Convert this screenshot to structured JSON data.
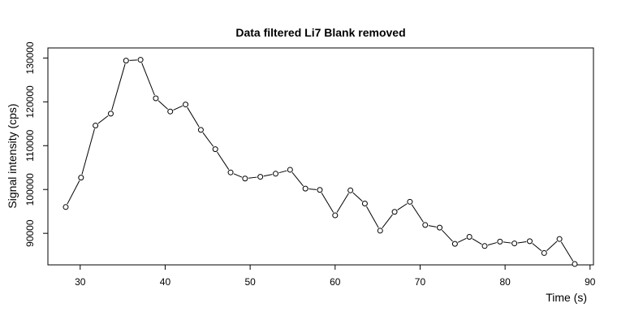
{
  "chart_data": {
    "type": "line",
    "title": "Data filtered Li7 Blank removed",
    "xlabel": "Time (s)",
    "ylabel": "Signal intensity (cps)",
    "xlim": [
      26.2,
      90.4
    ],
    "ylim": [
      82800,
      132300
    ],
    "xticks": [
      30,
      40,
      50,
      60,
      70,
      80,
      90
    ],
    "yticks": [
      90000,
      100000,
      110000,
      120000,
      130000
    ],
    "grid": false,
    "legend": "none",
    "marker": "open-circle",
    "series": [
      {
        "x": [
          28.3,
          30.1,
          31.8,
          33.6,
          35.4,
          37.1,
          38.9,
          40.6,
          42.4,
          44.2,
          45.9,
          47.7,
          49.4,
          51.2,
          53.0,
          54.7,
          56.5,
          58.2,
          60.0,
          61.8,
          63.5,
          65.3,
          67.0,
          68.8,
          70.6,
          72.3,
          74.1,
          75.8,
          77.6,
          79.4,
          81.1,
          82.9,
          84.6,
          86.4,
          88.2
        ],
        "y": [
          96000,
          102700,
          114600,
          117300,
          129400,
          129600,
          120800,
          117800,
          119400,
          113600,
          109200,
          103900,
          102500,
          102900,
          103600,
          104500,
          100200,
          99900,
          94100,
          99800,
          96800,
          90600,
          94900,
          97200,
          91900,
          91300,
          87600,
          89200,
          87100,
          88100,
          87700,
          88200,
          85500,
          88700,
          83000
        ]
      }
    ]
  }
}
